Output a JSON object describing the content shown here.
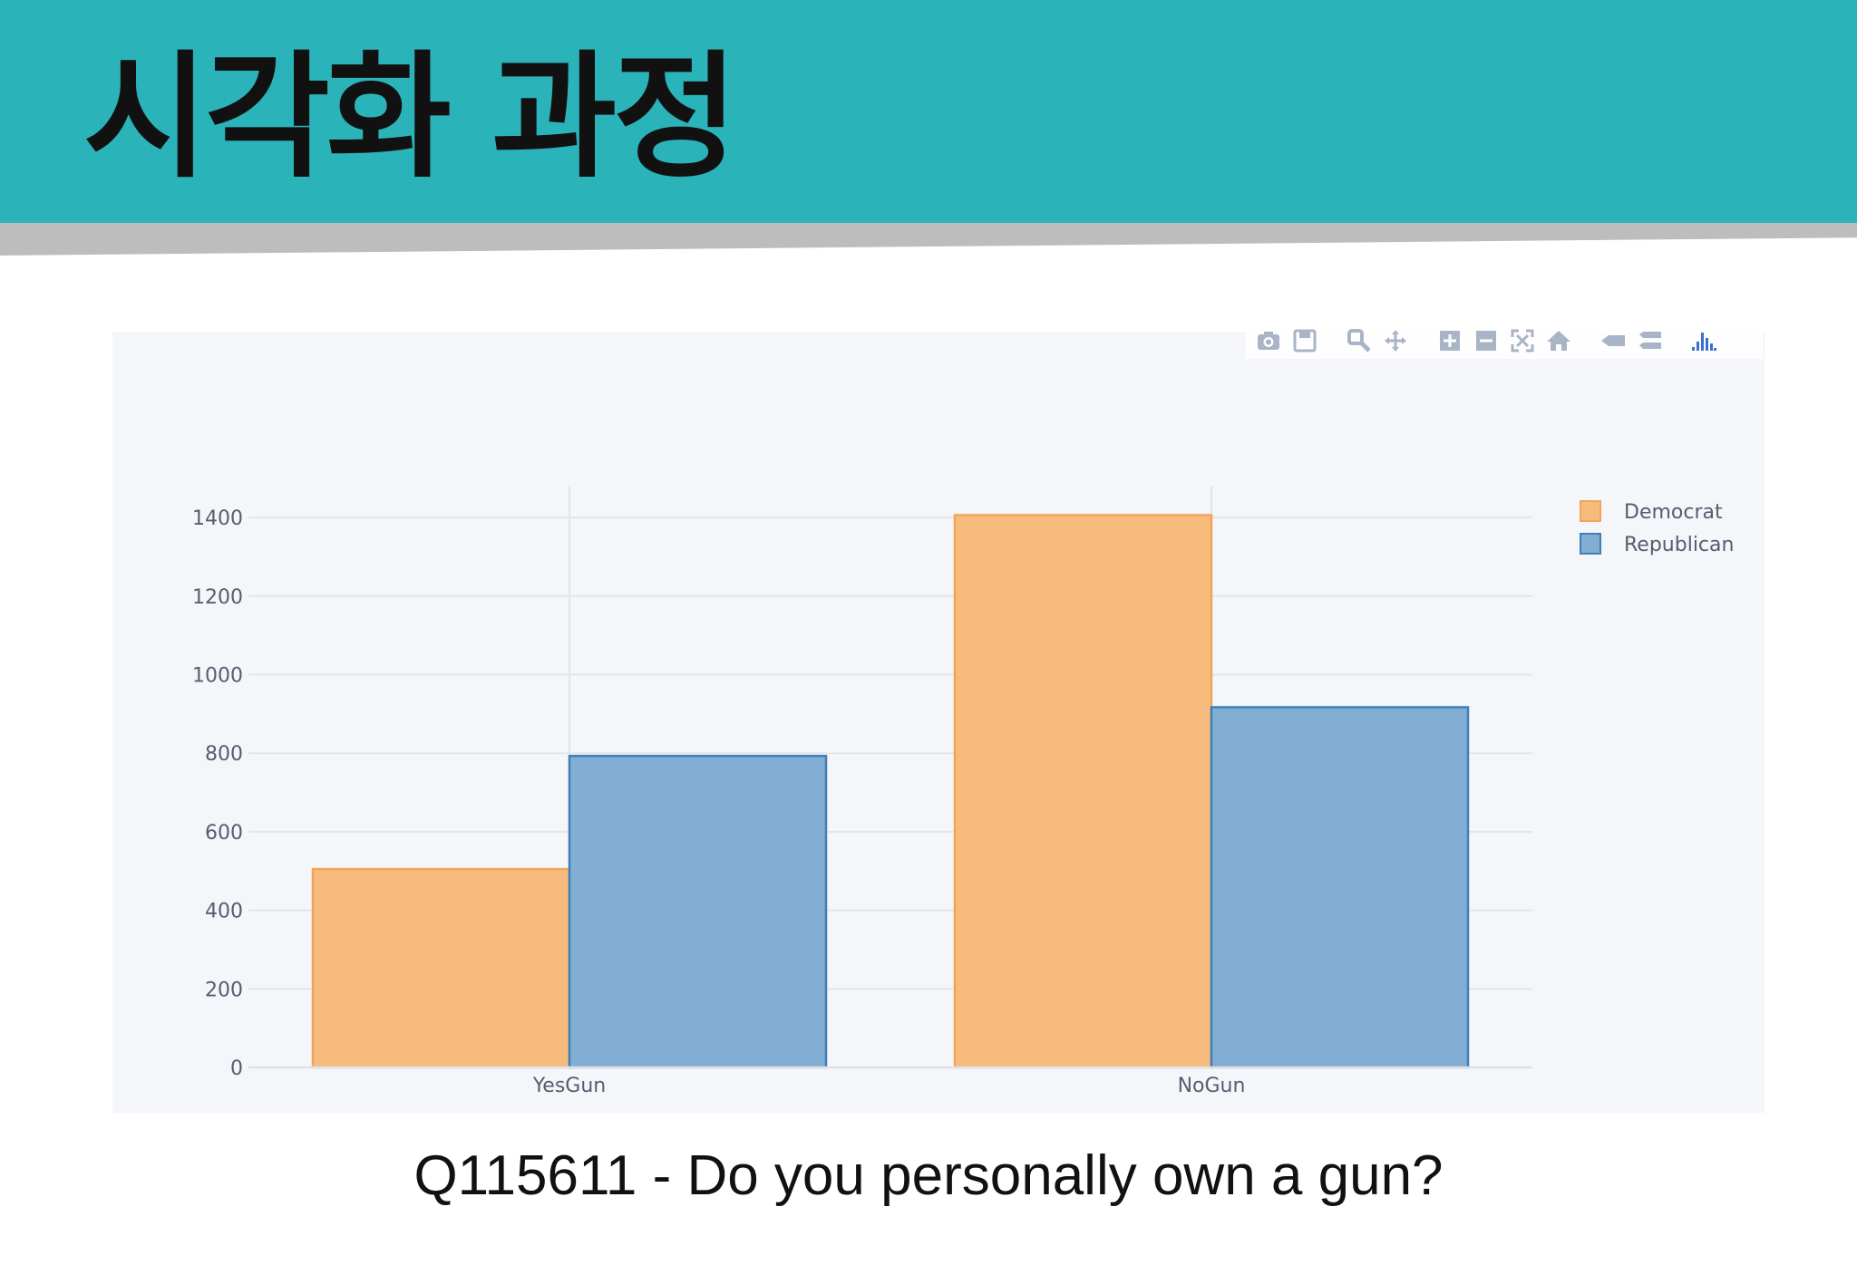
{
  "slide": {
    "title": "시각화 과정",
    "caption": "Q115611 - Do you personally own a gun?"
  },
  "modebar": {
    "icons": [
      "camera-icon",
      "save-icon",
      "zoom-icon",
      "pan-icon",
      "zoom-in-icon",
      "zoom-out-icon",
      "autoscale-icon",
      "home-icon",
      "hover-closest-icon",
      "hover-compare-icon",
      "plotly-logo-icon"
    ]
  },
  "colors": {
    "header": "#2ab3b9",
    "democrat": "#f8bb7e",
    "democrat_edge": "#f0a55a",
    "republican": "#83aed4",
    "republican_edge": "#3f7fb8"
  },
  "chart_data": {
    "type": "bar",
    "categories": [
      "YesGun",
      "NoGun"
    ],
    "series": [
      {
        "name": "Democrat",
        "values": [
          505,
          1406
        ]
      },
      {
        "name": "Republican",
        "values": [
          793,
          917
        ]
      }
    ],
    "yticks": [
      "0",
      "200",
      "400",
      "600",
      "800",
      "1000",
      "1200",
      "1400"
    ],
    "ylim": [
      0,
      1480
    ],
    "grid": true,
    "legend_position": "top-right",
    "title": "",
    "xlabel": "",
    "ylabel": ""
  }
}
